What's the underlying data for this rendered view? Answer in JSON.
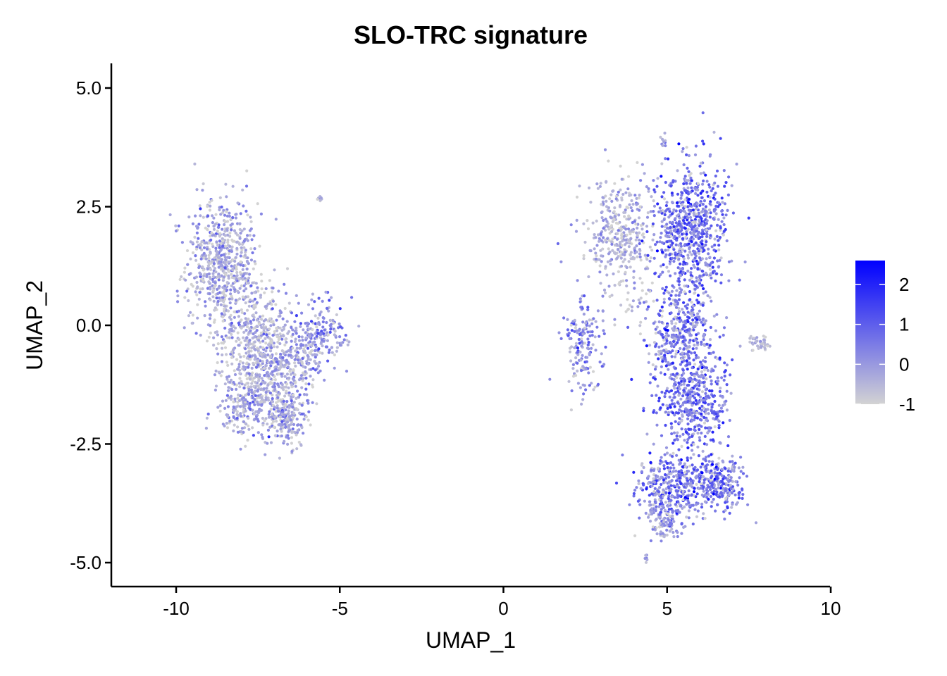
{
  "chart_data": {
    "type": "scatter",
    "title": "SLO-TRC signature",
    "xlabel": "UMAP_1",
    "ylabel": "UMAP_2",
    "xlim": [
      -12,
      10
    ],
    "ylim": [
      -5.5,
      5.5
    ],
    "x_ticks": [
      -10,
      -5,
      0,
      5,
      10
    ],
    "x_tick_labels": [
      "-10",
      "-5",
      "0",
      "5",
      "10"
    ],
    "y_ticks": [
      5.0,
      2.5,
      0.0,
      -2.5,
      -5.0
    ],
    "y_tick_labels": [
      "5.0",
      "2.5",
      "0.0",
      "-2.5",
      "-5.0"
    ],
    "grid": false,
    "colorbar": {
      "low_color": "#d3d3d3",
      "high_color": "#0000ff",
      "range": [
        -1,
        2.6
      ],
      "ticks": [
        2,
        1,
        0,
        -1
      ],
      "tick_labels": [
        "2",
        "1",
        "0",
        "-1"
      ],
      "position": "right"
    },
    "clusters": [
      {
        "cx": -8.6,
        "cy": 1.3,
        "sx": 0.55,
        "sy": 0.7,
        "n": 650,
        "mean_score": -0.4,
        "spread": 0.6
      },
      {
        "cx": -7.5,
        "cy": -0.3,
        "sx": 0.6,
        "sy": 0.6,
        "n": 400,
        "mean_score": -0.4,
        "spread": 0.6
      },
      {
        "cx": -7.2,
        "cy": -1.3,
        "sx": 0.7,
        "sy": 0.5,
        "n": 420,
        "mean_score": -0.4,
        "spread": 0.6
      },
      {
        "cx": -6.6,
        "cy": -2.0,
        "sx": 0.3,
        "sy": 0.3,
        "n": 150,
        "mean_score": -0.3,
        "spread": 0.6
      },
      {
        "cx": -8.0,
        "cy": -1.8,
        "sx": 0.3,
        "sy": 0.3,
        "n": 90,
        "mean_score": -0.2,
        "spread": 0.6
      },
      {
        "cx": -5.5,
        "cy": -0.2,
        "sx": 0.45,
        "sy": 0.35,
        "n": 160,
        "mean_score": 0.1,
        "spread": 0.7
      },
      {
        "cx": -6.3,
        "cy": -0.7,
        "sx": 0.35,
        "sy": 0.3,
        "n": 120,
        "mean_score": -0.2,
        "spread": 0.6
      },
      {
        "cx": -5.6,
        "cy": 2.65,
        "sx": 0.05,
        "sy": 0.04,
        "n": 8,
        "mean_score": -0.5,
        "spread": 0.3
      },
      {
        "cx": 3.6,
        "cy": 1.9,
        "sx": 0.55,
        "sy": 0.6,
        "n": 380,
        "mean_score": -0.5,
        "spread": 0.5
      },
      {
        "cx": 2.5,
        "cy": -0.4,
        "sx": 0.3,
        "sy": 0.5,
        "n": 160,
        "mean_score": 0.0,
        "spread": 0.7
      },
      {
        "cx": 5.7,
        "cy": 2.0,
        "sx": 0.55,
        "sy": 0.75,
        "n": 700,
        "mean_score": 0.6,
        "spread": 0.8
      },
      {
        "cx": 5.4,
        "cy": -0.2,
        "sx": 0.5,
        "sy": 0.5,
        "n": 380,
        "mean_score": 0.4,
        "spread": 0.8
      },
      {
        "cx": 5.8,
        "cy": -1.6,
        "sx": 0.55,
        "sy": 0.5,
        "n": 420,
        "mean_score": 0.6,
        "spread": 0.8
      },
      {
        "cx": 6.5,
        "cy": -3.3,
        "sx": 0.45,
        "sy": 0.3,
        "n": 300,
        "mean_score": 0.5,
        "spread": 0.8
      },
      {
        "cx": 5.0,
        "cy": -3.4,
        "sx": 0.5,
        "sy": 0.35,
        "n": 330,
        "mean_score": 0.4,
        "spread": 0.8
      },
      {
        "cx": 5.0,
        "cy": -4.2,
        "sx": 0.3,
        "sy": 0.15,
        "n": 80,
        "mean_score": 0.1,
        "spread": 0.7
      },
      {
        "cx": 7.8,
        "cy": -0.4,
        "sx": 0.2,
        "sy": 0.08,
        "n": 40,
        "mean_score": -0.4,
        "spread": 0.4
      },
      {
        "cx": 4.9,
        "cy": 3.9,
        "sx": 0.05,
        "sy": 0.08,
        "n": 8,
        "mean_score": -0.1,
        "spread": 0.4
      },
      {
        "cx": 4.35,
        "cy": -4.9,
        "sx": 0.04,
        "sy": 0.05,
        "n": 6,
        "mean_score": -0.1,
        "spread": 0.4
      }
    ]
  }
}
